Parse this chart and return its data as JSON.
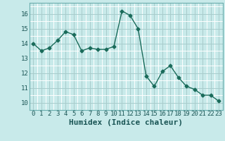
{
  "x": [
    0,
    1,
    2,
    3,
    4,
    5,
    6,
    7,
    8,
    9,
    10,
    11,
    12,
    13,
    14,
    15,
    16,
    17,
    18,
    19,
    20,
    21,
    22,
    23
  ],
  "y": [
    14.0,
    13.5,
    13.7,
    14.2,
    14.8,
    14.6,
    13.5,
    13.7,
    13.6,
    13.6,
    13.8,
    16.2,
    15.9,
    15.0,
    11.8,
    11.1,
    12.1,
    12.5,
    11.7,
    11.1,
    10.9,
    10.5,
    10.5,
    10.1
  ],
  "line_color": "#1a6b5a",
  "marker": "D",
  "marker_size": 2.5,
  "xlabel": "Humidex (Indice chaleur)",
  "xlim": [
    -0.5,
    23.5
  ],
  "ylim": [
    9.5,
    16.75
  ],
  "yticks": [
    10,
    11,
    12,
    13,
    14,
    15,
    16
  ],
  "xtick_labels": [
    "0",
    "1",
    "2",
    "3",
    "4",
    "5",
    "6",
    "7",
    "8",
    "9",
    "10",
    "11",
    "12",
    "13",
    "14",
    "15",
    "16",
    "17",
    "18",
    "19",
    "20",
    "21",
    "22",
    "23"
  ],
  "bg_color": "#c8eaea",
  "grid_minor_color": "#ffffff",
  "grid_major_color": "#a8cccc",
  "tick_fontsize": 6.5,
  "xlabel_fontsize": 8,
  "linewidth": 1.0
}
